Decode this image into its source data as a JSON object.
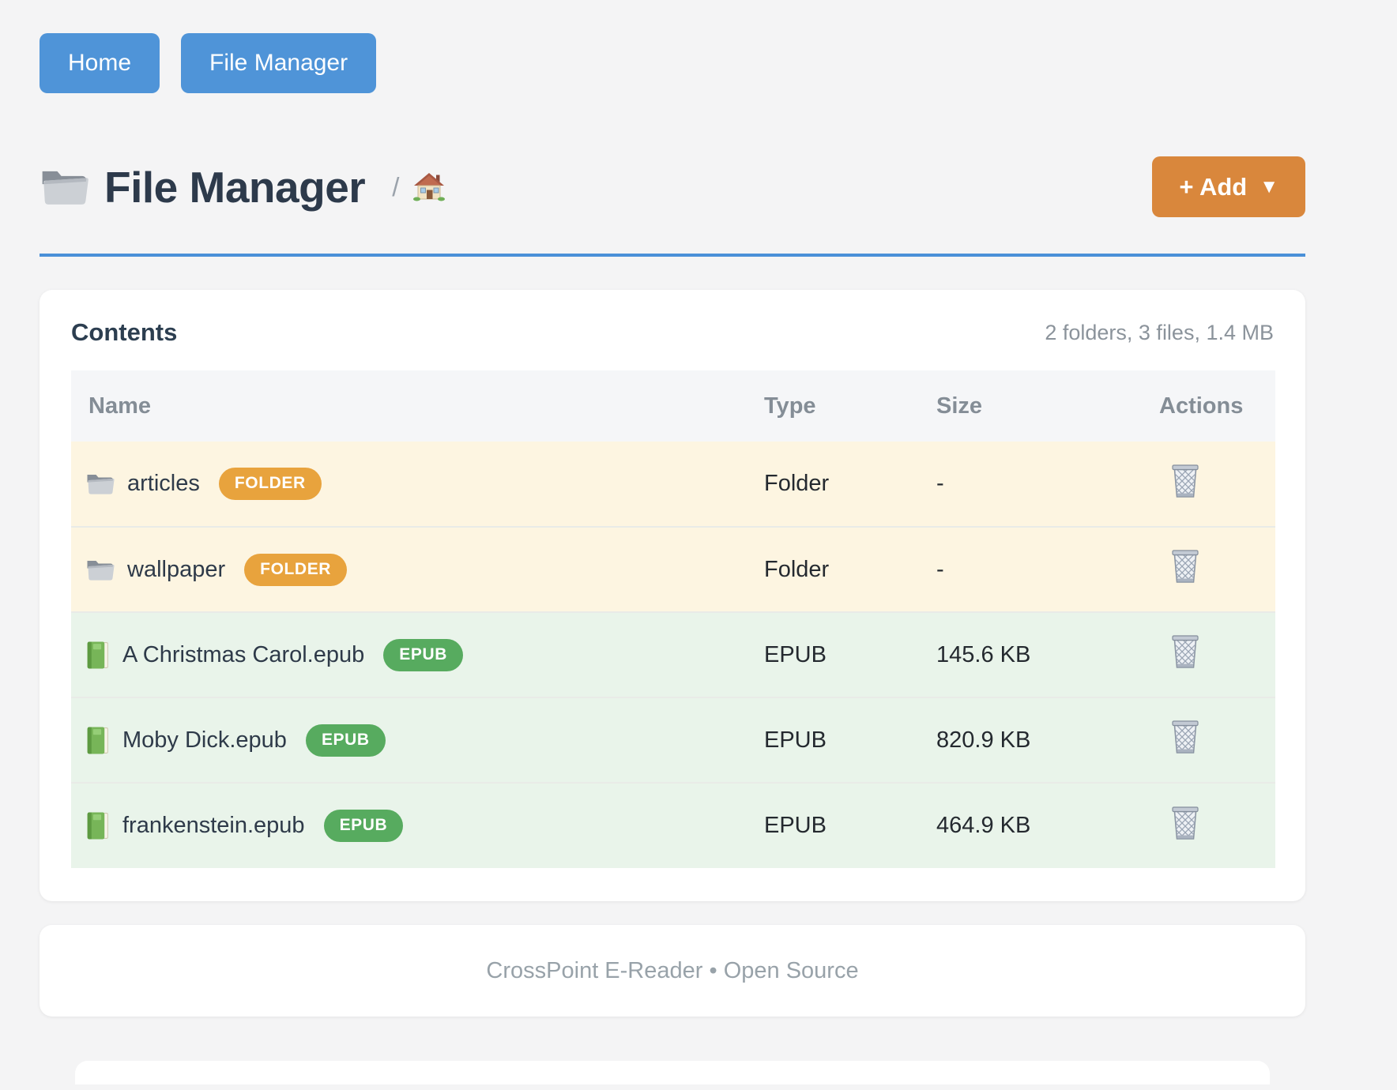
{
  "nav": {
    "buttons": [
      {
        "label": "Home"
      },
      {
        "label": "File Manager"
      }
    ]
  },
  "header": {
    "title_icon": "folder-icon",
    "title": "File Manager",
    "breadcrumb_separator": "/",
    "breadcrumb_icon": "house-icon",
    "add_button": {
      "label": "+ Add",
      "caret": "▼"
    }
  },
  "contents": {
    "heading": "Contents",
    "summary": "2 folders, 3 files, 1.4 MB",
    "columns": [
      "Name",
      "Type",
      "Size",
      "Actions"
    ],
    "rows": [
      {
        "icon": "folder-icon",
        "name": "articles",
        "badge": "FOLDER",
        "kind": "folder",
        "type": "Folder",
        "size": "-",
        "action_icon": "trash-icon"
      },
      {
        "icon": "folder-icon",
        "name": "wallpaper",
        "badge": "FOLDER",
        "kind": "folder",
        "type": "Folder",
        "size": "-",
        "action_icon": "trash-icon"
      },
      {
        "icon": "book-icon",
        "name": "A Christmas Carol.epub",
        "badge": "EPUB",
        "kind": "epub",
        "type": "EPUB",
        "size": "145.6 KB",
        "action_icon": "trash-icon"
      },
      {
        "icon": "book-icon",
        "name": "Moby Dick.epub",
        "badge": "EPUB",
        "kind": "epub",
        "type": "EPUB",
        "size": "820.9 KB",
        "action_icon": "trash-icon"
      },
      {
        "icon": "book-icon",
        "name": "frankenstein.epub",
        "badge": "EPUB",
        "kind": "epub",
        "type": "EPUB",
        "size": "464.9 KB",
        "action_icon": "trash-icon"
      }
    ]
  },
  "footer": {
    "text": "CrossPoint E-Reader • Open Source"
  },
  "colors": {
    "page_background": "#f4f4f5",
    "nav_button_blue": "#4f94d8",
    "divider_blue": "#4a90d8",
    "add_button_orange": "#d9873c",
    "badge_folder_orange": "#e8a33d",
    "badge_epub_green": "#57ab5f",
    "row_folder_background": "#fdf5e1",
    "row_epub_background": "#e9f4ea",
    "title_text": "#2d3a4b",
    "muted_text": "#8b939b"
  }
}
